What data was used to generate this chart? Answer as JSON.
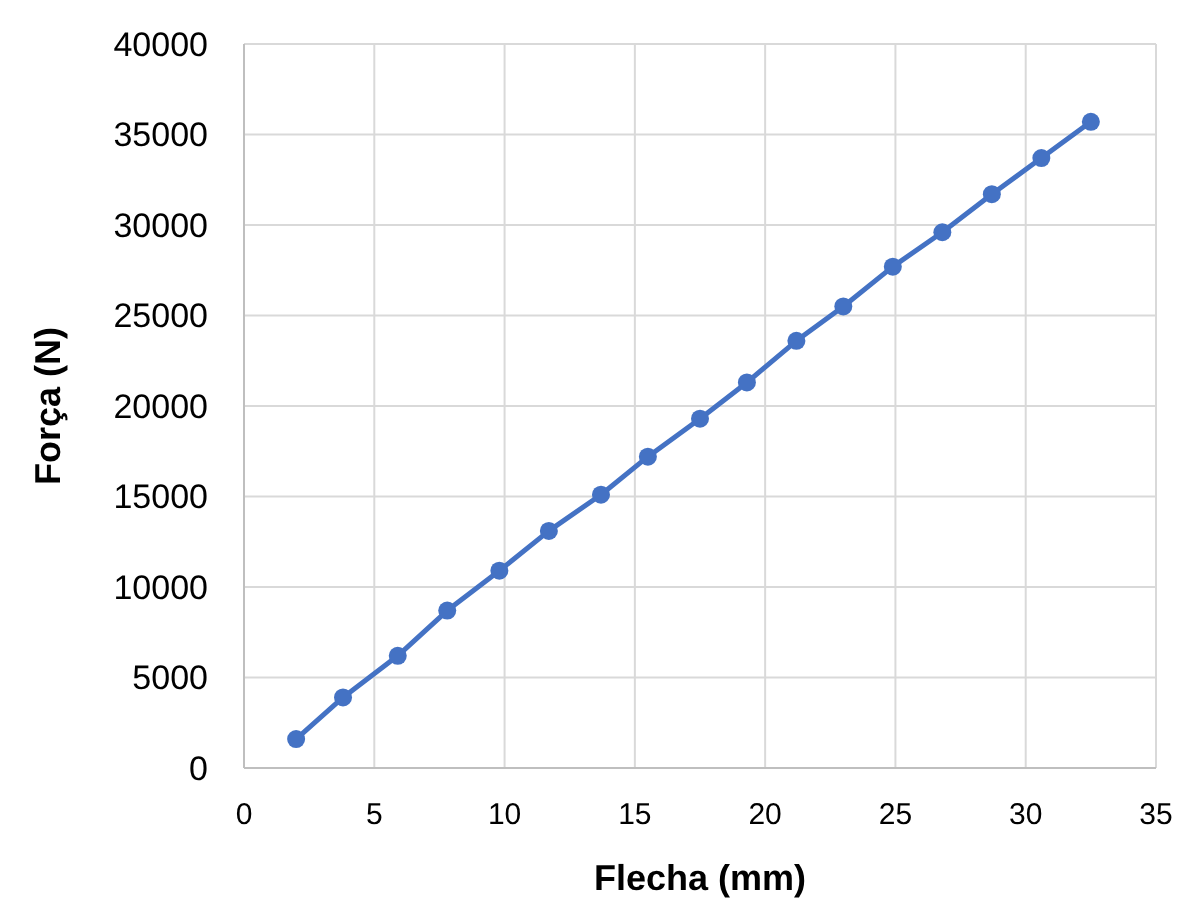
{
  "chart_data": {
    "type": "line",
    "xlabel": "Flecha (mm)",
    "ylabel": "Força (N)",
    "x": [
      2.0,
      3.8,
      5.9,
      7.8,
      9.8,
      11.7,
      13.7,
      15.5,
      17.5,
      19.3,
      21.2,
      23.0,
      24.9,
      26.8,
      28.7,
      30.6,
      32.5
    ],
    "series": [
      {
        "color": "#4472c4",
        "values": [
          1600,
          3900,
          6200,
          8700,
          10900,
          13100,
          15100,
          17200,
          19300,
          21300,
          23600,
          25500,
          27700,
          29600,
          31700,
          33700,
          35700
        ]
      }
    ],
    "xlim": [
      0,
      35
    ],
    "xticks": [
      0,
      5,
      10,
      15,
      20,
      25,
      30,
      35
    ],
    "ylim": [
      0,
      40000
    ],
    "yticks": [
      0,
      5000,
      10000,
      15000,
      20000,
      25000,
      30000,
      35000,
      40000
    ],
    "grid": true,
    "marker": "circle",
    "line_style": "solid"
  }
}
